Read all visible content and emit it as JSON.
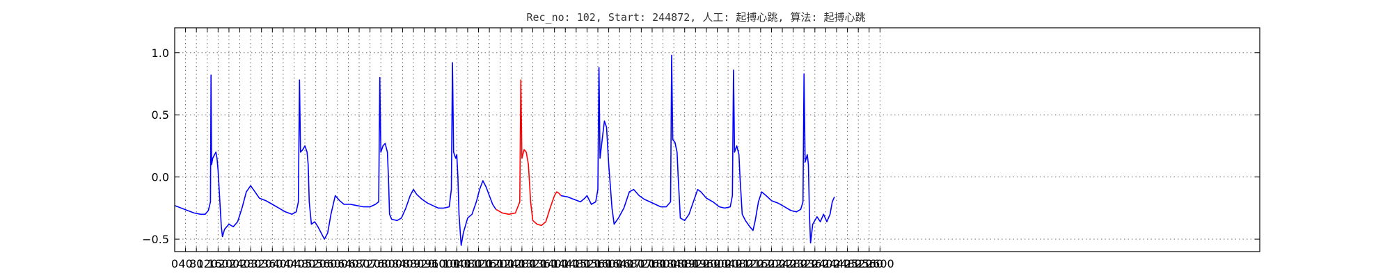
{
  "chart_data": {
    "type": "line",
    "title": "Rec_no: 102, Start: 244872, 人工: 起搏心跳, 算法: 起搏心跳",
    "xlabel": "",
    "ylabel": "",
    "xlim": [
      0,
      2000
    ],
    "ylim": [
      -0.6,
      1.2
    ],
    "grid": true,
    "yticks": [
      -0.5,
      0.0,
      0.5,
      1.0
    ],
    "ytick_labels": [
      "−0.5",
      "0.0",
      "0.5",
      "1.0"
    ],
    "xtick_step": 20,
    "xtick_labels": [
      "0",
      "40",
      "80",
      "120",
      "160",
      "200",
      "240",
      "280",
      "320",
      "360",
      "400",
      "440",
      "480",
      "520",
      "560",
      "600",
      "640",
      "680",
      "720",
      "760",
      "800",
      "840",
      "880",
      "920",
      "960",
      "1000",
      "1040",
      "1080",
      "1120",
      "1160",
      "1200",
      "1240",
      "1280",
      "1320",
      "1360",
      "1400",
      "1440",
      "1480",
      "1520",
      "1560",
      "1600",
      "1640",
      "1680",
      "1720",
      "1760",
      "1800",
      "1840",
      "1880",
      "1920",
      "1960",
      "2000",
      "2040",
      "2080",
      "2120",
      "2160",
      "2200",
      "2240",
      "2280",
      "2320",
      "2360",
      "2400",
      "2440",
      "2480",
      "2520",
      "2560",
      "2600"
    ],
    "series": [
      {
        "color": "#0000ff",
        "segments": [
          [
            [
              0,
              -0.23
            ],
            [
              12,
              -0.25
            ],
            [
              24,
              -0.27
            ],
            [
              36,
              -0.29
            ],
            [
              48,
              -0.3
            ],
            [
              56,
              -0.3
            ],
            [
              62,
              -0.27
            ],
            [
              66,
              -0.2
            ],
            [
              67,
              0.82
            ],
            [
              68,
              0.1
            ],
            [
              70,
              0.15
            ],
            [
              76,
              0.2
            ],
            [
              78,
              0.15
            ],
            [
              80,
              0.05
            ],
            [
              82,
              -0.1
            ],
            [
              86,
              -0.4
            ],
            [
              88,
              -0.48
            ],
            [
              92,
              -0.42
            ],
            [
              100,
              -0.38
            ],
            [
              108,
              -0.4
            ],
            [
              116,
              -0.36
            ],
            [
              124,
              -0.25
            ],
            [
              132,
              -0.12
            ],
            [
              140,
              -0.07
            ],
            [
              148,
              -0.12
            ],
            [
              156,
              -0.17
            ],
            [
              168,
              -0.19
            ],
            [
              180,
              -0.22
            ],
            [
              192,
              -0.25
            ],
            [
              204,
              -0.28
            ],
            [
              216,
              -0.3
            ],
            [
              224,
              -0.28
            ],
            [
              228,
              -0.2
            ],
            [
              230,
              0.78
            ],
            [
              232,
              0.2
            ],
            [
              236,
              0.22
            ],
            [
              240,
              0.25
            ],
            [
              244,
              0.2
            ],
            [
              246,
              0.1
            ],
            [
              248,
              -0.2
            ],
            [
              252,
              -0.38
            ],
            [
              258,
              -0.36
            ],
            [
              264,
              -0.4
            ],
            [
              270,
              -0.45
            ],
            [
              276,
              -0.5
            ],
            [
              282,
              -0.45
            ],
            [
              288,
              -0.3
            ],
            [
              296,
              -0.15
            ],
            [
              304,
              -0.19
            ],
            [
              312,
              -0.22
            ],
            [
              324,
              -0.22
            ],
            [
              336,
              -0.23
            ],
            [
              348,
              -0.24
            ],
            [
              360,
              -0.24
            ],
            [
              370,
              -0.22
            ],
            [
              376,
              -0.2
            ],
            [
              378,
              0.8
            ],
            [
              380,
              0.2
            ],
            [
              384,
              0.25
            ],
            [
              388,
              0.27
            ],
            [
              392,
              0.2
            ],
            [
              394,
              0.0
            ],
            [
              396,
              -0.3
            ],
            [
              400,
              -0.34
            ],
            [
              410,
              -0.35
            ],
            [
              418,
              -0.33
            ],
            [
              426,
              -0.25
            ],
            [
              434,
              -0.15
            ],
            [
              440,
              -0.1
            ],
            [
              446,
              -0.14
            ],
            [
              456,
              -0.18
            ],
            [
              466,
              -0.21
            ],
            [
              476,
              -0.23
            ],
            [
              486,
              -0.25
            ],
            [
              496,
              -0.25
            ],
            [
              506,
              -0.24
            ],
            [
              510,
              -0.1
            ],
            [
              512,
              0.92
            ],
            [
              514,
              0.2
            ],
            [
              518,
              0.15
            ],
            [
              520,
              0.18
            ],
            [
              522,
              0.0
            ],
            [
              524,
              -0.3
            ],
            [
              528,
              -0.55
            ],
            [
              532,
              -0.45
            ],
            [
              540,
              -0.33
            ],
            [
              548,
              -0.3
            ],
            [
              556,
              -0.2
            ],
            [
              562,
              -0.1
            ],
            [
              568,
              -0.03
            ],
            [
              574,
              -0.08
            ],
            [
              580,
              -0.15
            ],
            [
              586,
              -0.22
            ],
            [
              592,
              -0.26
            ]
          ]
        ]
      },
      {
        "color": "#ff0000",
        "segments": [
          [
            [
              592,
              -0.26
            ],
            [
              604,
              -0.29
            ],
            [
              616,
              -0.3
            ],
            [
              628,
              -0.29
            ],
            [
              636,
              -0.2
            ],
            [
              638,
              0.78
            ],
            [
              640,
              0.15
            ],
            [
              644,
              0.22
            ],
            [
              648,
              0.2
            ],
            [
              652,
              0.1
            ],
            [
              656,
              -0.2
            ],
            [
              660,
              -0.35
            ],
            [
              668,
              -0.38
            ],
            [
              676,
              -0.39
            ],
            [
              684,
              -0.36
            ],
            [
              692,
              -0.25
            ],
            [
              700,
              -0.15
            ],
            [
              704,
              -0.12
            ],
            [
              708,
              -0.13
            ],
            [
              712,
              -0.15
            ]
          ]
        ]
      },
      {
        "color": "#0000ff",
        "segments": [
          [
            [
              712,
              -0.15
            ],
            [
              724,
              -0.16
            ],
            [
              736,
              -0.18
            ],
            [
              748,
              -0.2
            ],
            [
              756,
              -0.17
            ],
            [
              760,
              -0.15
            ],
            [
              768,
              -0.22
            ],
            [
              776,
              -0.2
            ],
            [
              780,
              -0.1
            ],
            [
              782,
              0.88
            ],
            [
              784,
              0.15
            ],
            [
              788,
              0.3
            ],
            [
              792,
              0.45
            ],
            [
              796,
              0.4
            ],
            [
              800,
              0.1
            ],
            [
              806,
              -0.25
            ],
            [
              810,
              -0.38
            ],
            [
              818,
              -0.33
            ],
            [
              828,
              -0.25
            ],
            [
              838,
              -0.12
            ],
            [
              846,
              -0.1
            ],
            [
              856,
              -0.15
            ],
            [
              866,
              -0.18
            ],
            [
              876,
              -0.2
            ],
            [
              886,
              -0.22
            ],
            [
              896,
              -0.24
            ],
            [
              906,
              -0.24
            ],
            [
              914,
              -0.2
            ],
            [
              916,
              0.98
            ],
            [
              918,
              0.3
            ],
            [
              922,
              0.28
            ],
            [
              926,
              0.2
            ],
            [
              928,
              0.0
            ],
            [
              932,
              -0.33
            ],
            [
              940,
              -0.35
            ],
            [
              948,
              -0.3
            ],
            [
              956,
              -0.2
            ],
            [
              964,
              -0.1
            ],
            [
              970,
              -0.12
            ],
            [
              980,
              -0.17
            ],
            [
              992,
              -0.2
            ],
            [
              1004,
              -0.24
            ],
            [
              1014,
              -0.25
            ],
            [
              1024,
              -0.24
            ],
            [
              1028,
              -0.15
            ],
            [
              1030,
              0.86
            ],
            [
              1032,
              0.2
            ],
            [
              1036,
              0.25
            ],
            [
              1040,
              0.18
            ],
            [
              1042,
              0.0
            ],
            [
              1046,
              -0.3
            ],
            [
              1052,
              -0.35
            ],
            [
              1060,
              -0.4
            ],
            [
              1066,
              -0.43
            ],
            [
              1070,
              -0.35
            ],
            [
              1076,
              -0.2
            ],
            [
              1082,
              -0.12
            ],
            [
              1090,
              -0.15
            ],
            [
              1100,
              -0.19
            ],
            [
              1112,
              -0.21
            ],
            [
              1124,
              -0.24
            ],
            [
              1136,
              -0.27
            ],
            [
              1146,
              -0.28
            ],
            [
              1154,
              -0.26
            ],
            [
              1158,
              -0.2
            ],
            [
              1160,
              0.83
            ],
            [
              1162,
              0.12
            ],
            [
              1166,
              0.18
            ],
            [
              1168,
              0.1
            ],
            [
              1170,
              -0.3
            ],
            [
              1172,
              -0.53
            ],
            [
              1176,
              -0.38
            ],
            [
              1184,
              -0.32
            ],
            [
              1190,
              -0.36
            ],
            [
              1196,
              -0.3
            ],
            [
              1202,
              -0.36
            ],
            [
              1208,
              -0.3
            ],
            [
              1212,
              -0.2
            ],
            [
              1216,
              -0.16
            ]
          ]
        ]
      }
    ]
  }
}
